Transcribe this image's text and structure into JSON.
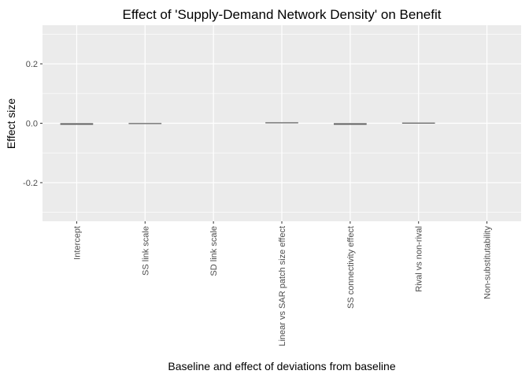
{
  "chart_data": {
    "type": "bar",
    "title": "Effect of 'Supply-Demand Network Density' on Benefit",
    "xlabel": "Baseline and effect of deviations from baseline",
    "ylabel": "Effect size",
    "categories": [
      "Intercept",
      "SS link scale",
      "SD link scale",
      "Linear vs SAR patch size effect",
      "SS connectivity effect",
      "Rival vs non-rival",
      "Non-substitutability"
    ],
    "values": [
      -0.005,
      -0.002,
      0.0,
      0.003,
      -0.005,
      0.001,
      0.0
    ],
    "ylim": [
      -0.33,
      0.33
    ],
    "yticks": [
      -0.2,
      0.0,
      0.2
    ],
    "ytick_labels": [
      "-0.2",
      "0.0",
      "0.2"
    ],
    "grid": true,
    "colors": {
      "panel": "#ebebeb",
      "grid": "#ffffff",
      "bar": "#595959",
      "tick": "#333333"
    }
  }
}
